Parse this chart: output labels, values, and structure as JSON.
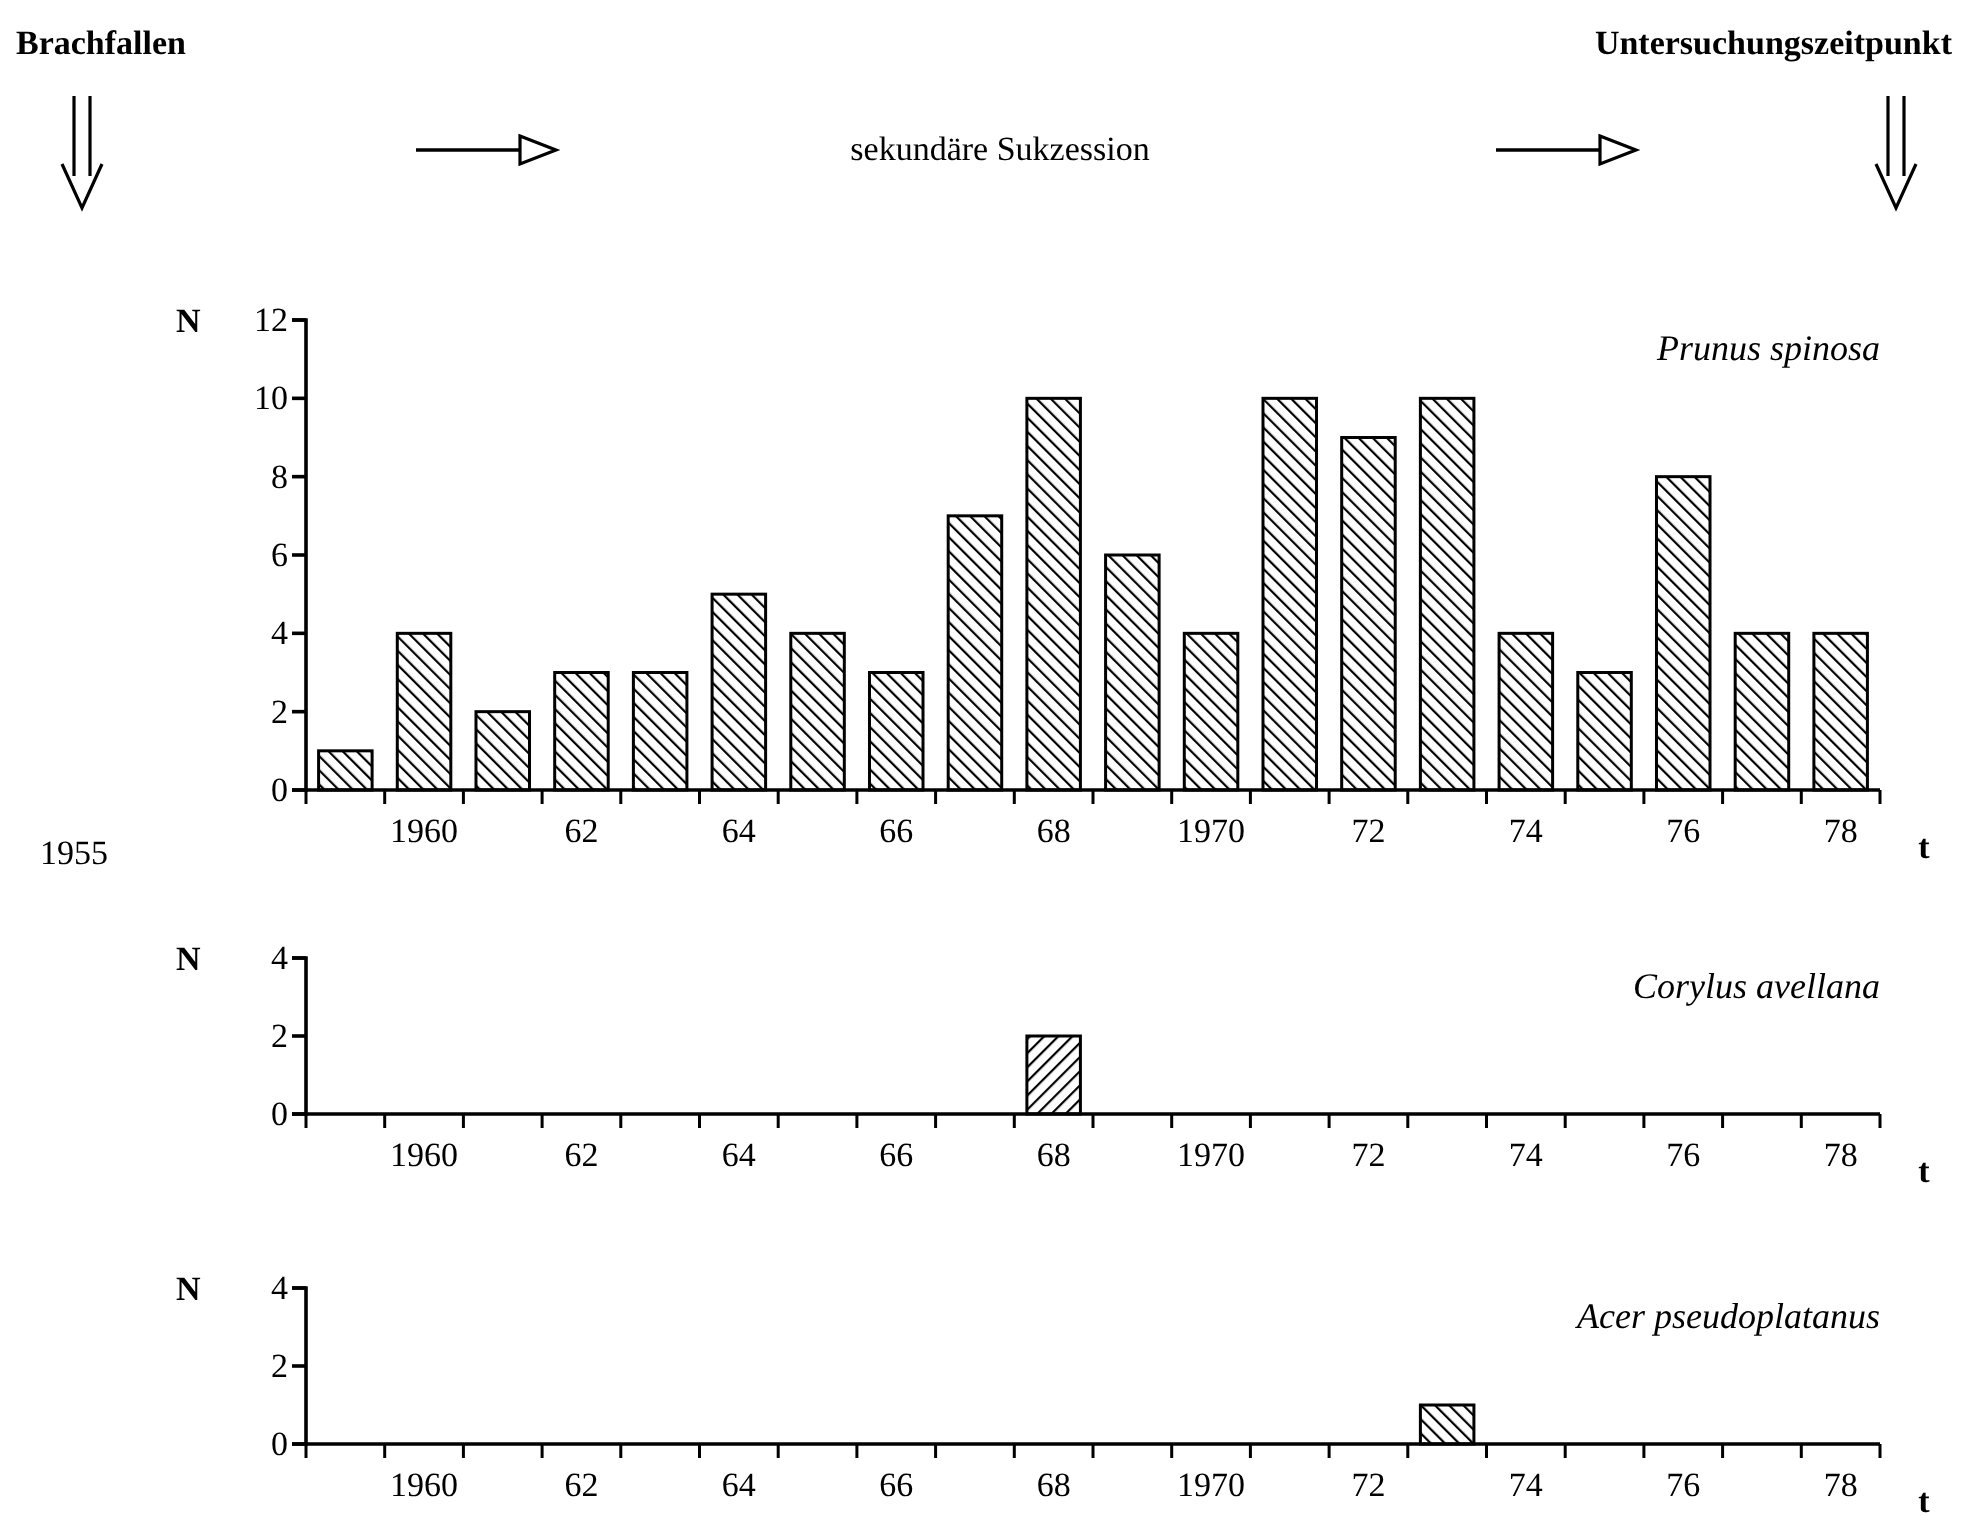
{
  "chart_data": [
    {
      "type": "bar",
      "title": "Prunus spinosa",
      "ylabel": "N",
      "xlabel": "t",
      "annotations": [
        "Brachfallen",
        "sekundäre Sukzession",
        "Untersuchungszeitpunkt",
        "1955"
      ],
      "categories": [
        null,
        "1960",
        null,
        "62",
        null,
        "64",
        null,
        "66",
        null,
        "68",
        null,
        "1970",
        null,
        "72",
        null,
        "74",
        null,
        "76",
        null,
        "78"
      ],
      "values": [
        1,
        4,
        2,
        3,
        3,
        5,
        4,
        3,
        7,
        10,
        6,
        4,
        10,
        9,
        10,
        4,
        3,
        8,
        4,
        4
      ],
      "color": "#000000",
      "ylim": [
        0,
        12
      ],
      "yticks": [
        0,
        2,
        4,
        6,
        8,
        10,
        12
      ]
    },
    {
      "type": "bar",
      "title": "Corylus avellana",
      "ylabel": "N",
      "xlabel": "t",
      "categories": [
        null,
        "1960",
        null,
        "62",
        null,
        "64",
        null,
        "66",
        null,
        "68",
        null,
        "1970",
        null,
        "72",
        null,
        "74",
        null,
        "76",
        null,
        "78"
      ],
      "values": [
        0,
        0,
        0,
        0,
        0,
        0,
        0,
        0,
        0,
        2,
        0,
        0,
        0,
        0,
        0,
        0,
        0,
        0,
        0,
        0
      ],
      "color": "#000000",
      "ylim": [
        0,
        4
      ],
      "yticks": [
        0,
        2,
        4
      ]
    },
    {
      "type": "bar",
      "title": "Acer pseudoplatanus",
      "ylabel": "N",
      "xlabel": "t",
      "categories": [
        null,
        "1960",
        null,
        "62",
        null,
        "64",
        null,
        "66",
        null,
        "68",
        null,
        "1970",
        null,
        "72",
        null,
        "74",
        null,
        "76",
        null,
        "78"
      ],
      "values": [
        0,
        0,
        0,
        0,
        0,
        0,
        0,
        0,
        0,
        0,
        0,
        0,
        0,
        0,
        1,
        0,
        0,
        0,
        0,
        0
      ],
      "color": "#000000",
      "ylim": [
        0,
        4
      ],
      "yticks": [
        0,
        2,
        4
      ]
    }
  ]
}
